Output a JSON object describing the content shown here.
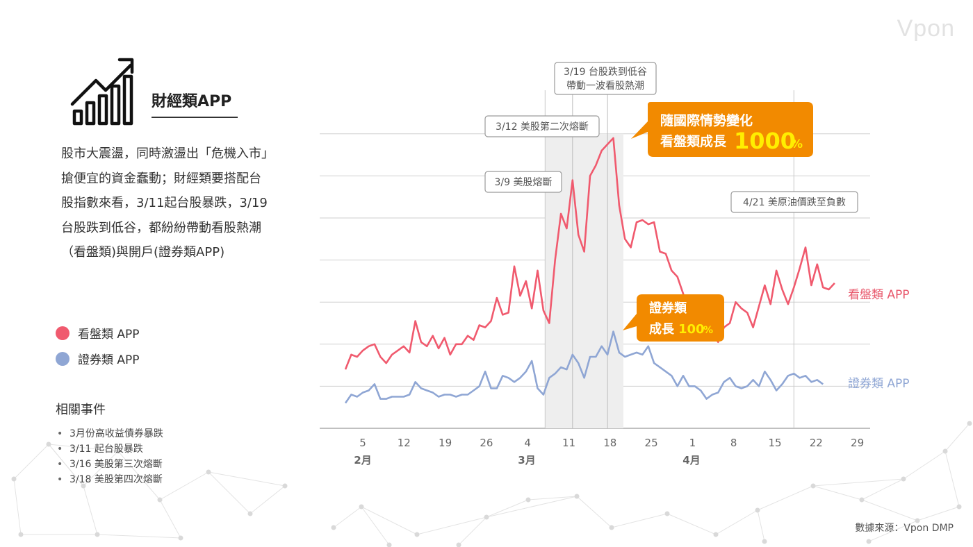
{
  "brand": {
    "logo_text": "Vpon"
  },
  "category": {
    "title": "財經類APP",
    "icon": "bar-chart-growth-icon"
  },
  "description": "股市大震盪，同時激盪出「危機入市」搶便宜的資金蠢動；財經類要搭配台股指數來看，3/11起台股暴跌，3/19台股跌到低谷，都紛紛帶動看股熱潮（看盤類)與開戶(證券類APP)",
  "legend": [
    {
      "label": "看盤類 APP",
      "color": "#f05a6e"
    },
    {
      "label": "證券類 APP",
      "color": "#8fa6d4"
    }
  ],
  "events": {
    "title": "相關事件",
    "items": [
      "3月份高收益債券暴跌",
      "3/11 起台股暴跌",
      "3/16 美股第三次熔斷",
      "3/18 美股第四次熔斷"
    ]
  },
  "source": "數據來源：Vpon DMP",
  "colors": {
    "red_series": "#f05a6e",
    "blue_series": "#8fa6d4",
    "callout": "#f28a00",
    "shade": "#eeeeee",
    "grid": "#c8c8c8"
  },
  "chart_data": {
    "type": "line",
    "x_tick_labels": [
      "5",
      "12",
      "19",
      "26",
      "4",
      "11",
      "18",
      "25",
      "1",
      "8",
      "15",
      "22",
      "29"
    ],
    "month_labels": [
      "2月",
      "3月",
      "4月"
    ],
    "grid": true,
    "series": [
      {
        "name": "看盤類 APP",
        "color": "#f05a6e",
        "values": [
          14,
          17.5,
          17,
          18.5,
          19.5,
          20,
          17,
          15.5,
          17.5,
          18.5,
          19.5,
          18,
          25.5,
          20.5,
          19.5,
          22,
          19,
          21.5,
          17.5,
          20,
          20,
          22,
          21,
          24.5,
          24,
          25.5,
          31,
          27,
          27.5,
          38.5,
          31.5,
          35,
          28.5,
          37.5,
          28,
          25,
          40,
          51,
          47.5,
          59,
          46,
          42,
          60,
          62.5,
          66,
          67.5,
          69,
          53,
          45,
          43,
          49,
          49.5,
          48.5,
          49,
          42,
          41.5,
          37.5,
          36,
          32,
          26,
          28,
          31.5,
          25.5,
          22.5,
          20.5,
          24,
          25,
          30,
          28.5,
          27.5,
          24,
          29,
          34,
          29.5,
          37.5,
          33,
          29.5,
          33.5,
          38,
          43,
          34,
          39,
          33.5,
          33,
          34.5
        ]
      },
      {
        "name": "證券類 APP",
        "color": "#8fa6d4",
        "values": [
          6,
          8,
          7.5,
          8.5,
          9,
          10.5,
          7,
          7,
          7.5,
          7.5,
          7.5,
          8,
          11,
          9.5,
          9,
          8.5,
          7.5,
          8,
          8,
          7.5,
          8,
          8,
          9,
          10,
          13.5,
          9.5,
          9.5,
          12.5,
          12,
          11,
          12,
          13.5,
          16,
          9.5,
          8,
          12,
          13,
          14.5,
          14,
          17.5,
          15.5,
          12,
          17,
          17,
          19.5,
          17.5,
          23,
          18,
          17,
          17.5,
          18,
          17.5,
          19.5,
          15.5,
          14.5,
          13.5,
          12.5,
          10,
          12.5,
          10,
          10,
          9,
          7,
          8,
          8.5,
          11,
          12,
          10,
          9.5,
          10,
          11.5,
          10,
          13.5,
          11.5,
          9,
          10.5,
          12.5,
          13,
          12,
          12.5,
          11,
          11.5,
          10.5
        ]
      }
    ],
    "annotations": [
      {
        "label": "3/9 美股熔斷"
      },
      {
        "label": "3/12 美股第二次熔斷"
      },
      {
        "label": "3/19 台股跌到低谷\n帶動一波看股熱潮"
      },
      {
        "label": "4/21 美原油價跌至負數"
      }
    ],
    "callouts": [
      {
        "text": "隨國際情勢變化",
        "prefix": "看盤類成長",
        "number": "1000",
        "unit": "%"
      },
      {
        "text": "證券類",
        "prefix": "成長",
        "number": "100",
        "unit": "%"
      }
    ],
    "series_end_labels": [
      "看盤類 APP",
      "證券類 APP"
    ]
  }
}
